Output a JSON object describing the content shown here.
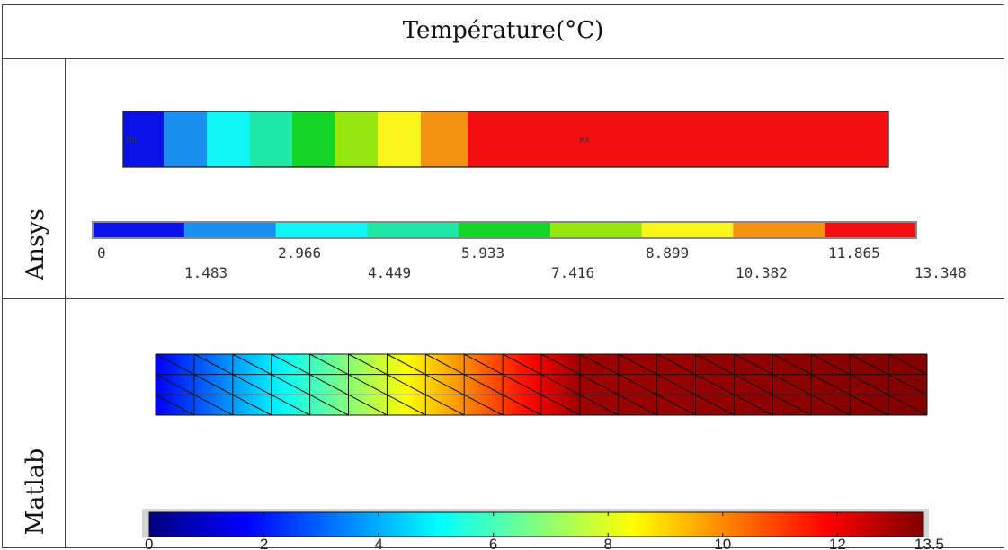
{
  "header": {
    "title": "Température(°C)"
  },
  "rows": {
    "ansys": {
      "label": "Ansys"
    },
    "matlab": {
      "label": "Matlab"
    }
  },
  "ansys": {
    "bar_colors": [
      "#0a10e8",
      "#1a8ff0",
      "#10f5f5",
      "#1de8a6",
      "#14d629",
      "#97e60e",
      "#f8f51a",
      "#f29312",
      "#f30f0f"
    ],
    "bar_labels": [
      "MN",
      "MX"
    ],
    "legend_colors": [
      "#0a10e8",
      "#1a8ff0",
      "#10f5f5",
      "#1de8a6",
      "#14d629",
      "#97e60e",
      "#f8f51a",
      "#f29312",
      "#f30f0f"
    ],
    "legend_ticks_top": [
      "0",
      "2.966",
      "5.933",
      "8.899",
      "11.865"
    ],
    "legend_ticks_bottom": [
      "1.483",
      "4.449",
      "7.416",
      "10.382",
      "13.348"
    ]
  },
  "matlab": {
    "colormap": "jet",
    "colorbar_min": 0,
    "colorbar_max": 13.5,
    "colorbar_ticks": [
      "0",
      "2",
      "4",
      "6",
      "8",
      "10",
      "12",
      "13.5"
    ]
  }
}
